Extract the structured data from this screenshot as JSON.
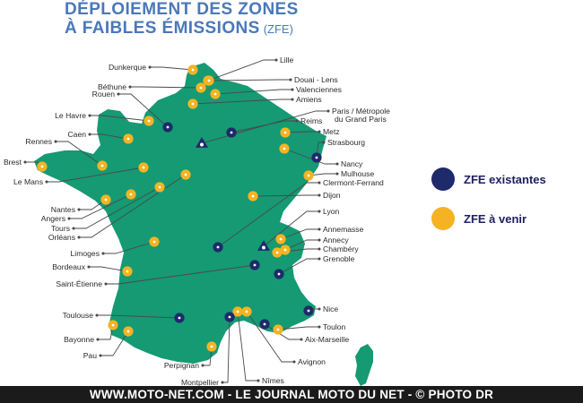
{
  "title": {
    "line1": "DÉPLOIEMENT DES ZONES",
    "line2": "À FAIBLES ÉMISSIONS",
    "suffix": "(ZFE)"
  },
  "legend": {
    "existing": "ZFE existantes",
    "upcoming": "ZFE à venir"
  },
  "colors": {
    "land": "#159a73",
    "existing": "#1f2a6b",
    "upcoming": "#f5b323",
    "title": "#4a78b9"
  },
  "cities": [
    {
      "id": "lille",
      "label": "Lille",
      "status": "upcoming"
    },
    {
      "id": "dunkerque",
      "label": "Dunkerque",
      "status": "upcoming"
    },
    {
      "id": "douai-lens",
      "label": "Douai - Lens",
      "status": "upcoming"
    },
    {
      "id": "bethune",
      "label": "Béthune",
      "status": "upcoming"
    },
    {
      "id": "valenciennes",
      "label": "Valenciennes",
      "status": "upcoming"
    },
    {
      "id": "rouen",
      "label": "Rouen",
      "status": "existing"
    },
    {
      "id": "amiens",
      "label": "Amiens",
      "status": "upcoming"
    },
    {
      "id": "le-havre",
      "label": "Le Havre",
      "status": "upcoming"
    },
    {
      "id": "paris",
      "label": "Paris / Métropole du Grand Paris",
      "status": "existing"
    },
    {
      "id": "caen",
      "label": "Caen",
      "status": "upcoming"
    },
    {
      "id": "reims",
      "label": "Reims",
      "status": "existing"
    },
    {
      "id": "rennes",
      "label": "Rennes",
      "status": "upcoming"
    },
    {
      "id": "metz",
      "label": "Metz",
      "status": "upcoming"
    },
    {
      "id": "strasbourg",
      "label": "Strasbourg",
      "status": "existing"
    },
    {
      "id": "brest",
      "label": "Brest",
      "status": "upcoming"
    },
    {
      "id": "nancy",
      "label": "Nancy",
      "status": "upcoming"
    },
    {
      "id": "mulhouse",
      "label": "Mulhouse",
      "status": "upcoming"
    },
    {
      "id": "le-mans",
      "label": "Le Mans",
      "status": "upcoming"
    },
    {
      "id": "clermont-ferrand",
      "label": "Clermont-Ferrand",
      "status": "existing"
    },
    {
      "id": "dijon",
      "label": "Dijon",
      "status": "upcoming"
    },
    {
      "id": "nantes",
      "label": "Nantes",
      "status": "upcoming"
    },
    {
      "id": "angers",
      "label": "Angers",
      "status": "upcoming"
    },
    {
      "id": "tours",
      "label": "Tours",
      "status": "upcoming"
    },
    {
      "id": "lyon",
      "label": "Lyon",
      "status": "existing"
    },
    {
      "id": "orleans",
      "label": "Orléans",
      "status": "upcoming"
    },
    {
      "id": "annemasse",
      "label": "Annemasse",
      "status": "upcoming"
    },
    {
      "id": "annecy",
      "label": "Annecy",
      "status": "upcoming"
    },
    {
      "id": "limoges",
      "label": "Limoges",
      "status": "upcoming"
    },
    {
      "id": "chambery",
      "label": "Chambéry",
      "status": "upcoming"
    },
    {
      "id": "bordeaux",
      "label": "Bordeaux",
      "status": "upcoming"
    },
    {
      "id": "grenoble",
      "label": "Grenoble",
      "status": "existing"
    },
    {
      "id": "saint-etienne",
      "label": "Saint-Étienne",
      "status": "existing"
    },
    {
      "id": "toulouse",
      "label": "Toulouse",
      "status": "existing"
    },
    {
      "id": "nice",
      "label": "Nice",
      "status": "existing"
    },
    {
      "id": "bayonne",
      "label": "Bayonne",
      "status": "upcoming"
    },
    {
      "id": "toulon",
      "label": "Toulon",
      "status": "upcoming"
    },
    {
      "id": "pau",
      "label": "Pau",
      "status": "upcoming"
    },
    {
      "id": "aix-marseille",
      "label": "Aix-Marseille",
      "status": "existing"
    },
    {
      "id": "perpignan",
      "label": "Perpignan",
      "status": "upcoming"
    },
    {
      "id": "avignon",
      "label": "Avignon",
      "status": "upcoming"
    },
    {
      "id": "nimes",
      "label": "Nîmes",
      "status": "upcoming"
    },
    {
      "id": "montpellier",
      "label": "Montpellier",
      "status": "existing"
    }
  ],
  "footer": "WWW.MOTO-NET.COM - LE JOURNAL MOTO DU NET - © PHOTO DR"
}
